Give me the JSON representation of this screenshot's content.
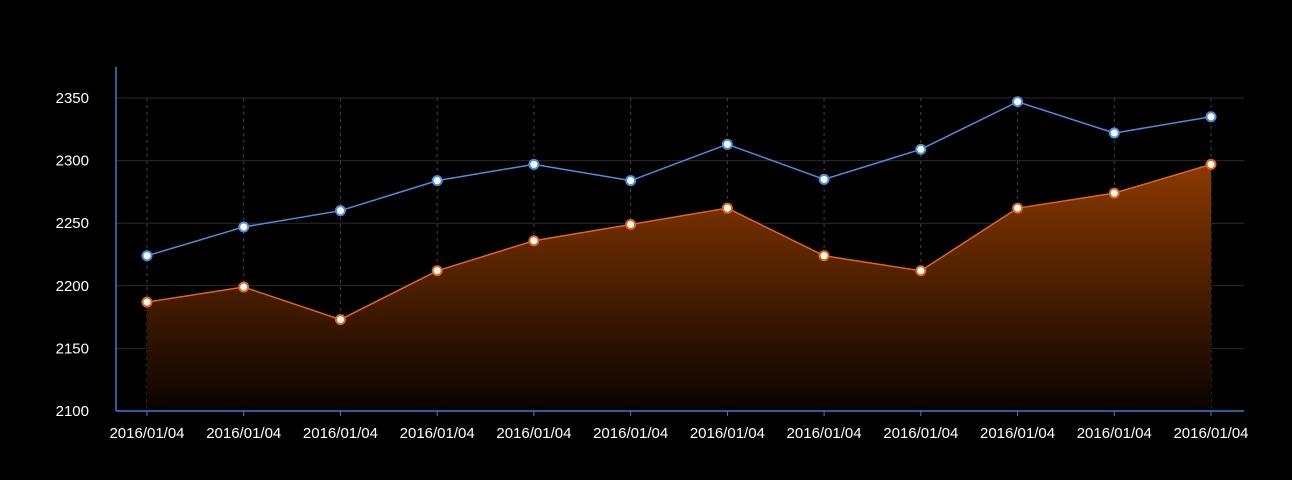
{
  "chart_data": {
    "type": "line",
    "categories": [
      "2016/01/04",
      "2016/01/04",
      "2016/01/04",
      "2016/01/04",
      "2016/01/04",
      "2016/01/04",
      "2016/01/04",
      "2016/01/04",
      "2016/01/04",
      "2016/01/04",
      "2016/01/04",
      "2016/01/04"
    ],
    "y_ticks": [
      2100,
      2150,
      2200,
      2250,
      2300,
      2350
    ],
    "ylim": [
      2100,
      2375
    ],
    "title": "",
    "xlabel": "",
    "ylabel": "",
    "grid": true,
    "series": [
      {
        "values": [
          2224,
          2247,
          2260,
          2284,
          2297,
          2284,
          2313,
          2285,
          2309,
          2347,
          2322,
          2335
        ],
        "color": "#4a8fe0",
        "style": "line"
      },
      {
        "values": [
          2187,
          2199,
          2173,
          2212,
          2236,
          2249,
          2262,
          2224,
          2212,
          2262,
          2274,
          2297
        ],
        "color": "#e2661a",
        "style": "area"
      }
    ]
  },
  "colors": {
    "background": "#000000",
    "axis": "#3a7bd5",
    "grid": "#2a2a2a",
    "vertical_grid": "#444444",
    "area_top": "#8a3a00",
    "area_bottom": "#0a0200"
  }
}
